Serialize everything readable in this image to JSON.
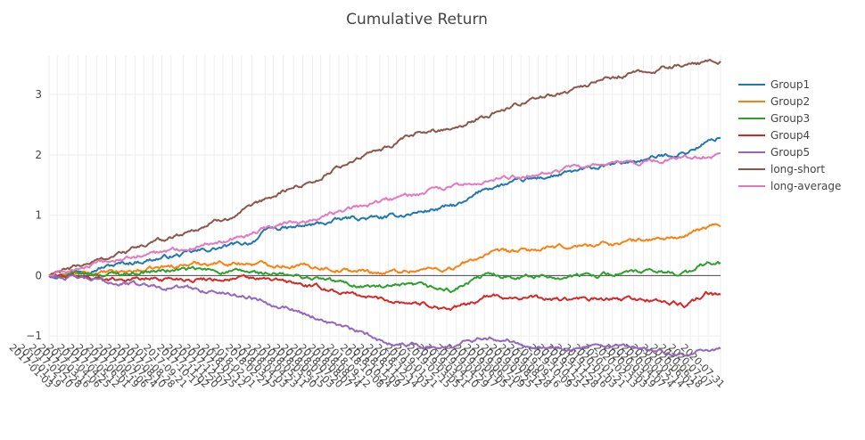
{
  "chart_data": {
    "type": "line",
    "title": "Cumulative Return",
    "xlabel": "",
    "ylabel": "",
    "ylim": [
      -1.75,
      3.65
    ],
    "yticks": [
      -1,
      0,
      1,
      2,
      3
    ],
    "ytick_labels": [
      "−1",
      "0",
      "1",
      "2",
      "3"
    ],
    "grid": true,
    "legend_position": "right",
    "x_start": "2017-01-03",
    "x_end": "2020-07-31",
    "xtick_labels": [
      "2017-01-03",
      "2017-01-19",
      "2017-02-10",
      "2017-02-28",
      "2017-03-16",
      "2017-04-06",
      "2017-04-25",
      "2017-05-12",
      "2017-06-01",
      "2017-06-19",
      "2017-07-06",
      "2017-07-24",
      "2017-08-10",
      "2017-08-28",
      "2017-09-21",
      "2017-10-17",
      "2017-11-02",
      "2017-11-20",
      "2017-12-07",
      "2017-12-25",
      "2018-01-12",
      "2018-02-01",
      "2018-02-27",
      "2018-03-15",
      "2018-04-03",
      "2018-04-23",
      "2018-05-11",
      "2018-05-30",
      "2018-06-15",
      "2018-07-03",
      "2018-07-20",
      "2018-08-07",
      "2018-08-24",
      "2018-09-12",
      "2018-10-08",
      "2018-10-24",
      "2018-11-09",
      "2018-11-27",
      "2018-12-14",
      "2019-01-03",
      "2019-01-21",
      "2019-02-15",
      "2019-03-05",
      "2019-03-21",
      "2019-04-10",
      "2019-04-29",
      "2019-05-17",
      "2019-06-05",
      "2019-06-21",
      "2019-07-09",
      "2019-07-25",
      "2019-08-12",
      "2019-08-28",
      "2019-09-16",
      "2019-10-09",
      "2019-10-25",
      "2019-11-12",
      "2019-11-28",
      "2019-12-16",
      "2020-01-03",
      "2020-01-21",
      "2020-02-13",
      "2020-03-03",
      "2020-03-19",
      "2020-04-07",
      "2020-04-24",
      "2020-05-14",
      "2020-06-02",
      "2020-06-18",
      "2020-07-07",
      "2020-07-31"
    ],
    "series": [
      {
        "name": "Group1",
        "color": "#1f77b4",
        "points": [
          [
            0,
            0.0
          ],
          [
            0.05,
            0.1
          ],
          [
            0.1,
            0.18
          ],
          [
            0.2,
            0.35
          ],
          [
            0.3,
            0.55
          ],
          [
            0.33,
            0.78
          ],
          [
            0.36,
            0.78
          ],
          [
            0.4,
            0.85
          ],
          [
            0.45,
            0.95
          ],
          [
            0.5,
            0.95
          ],
          [
            0.55,
            1.05
          ],
          [
            0.6,
            1.15
          ],
          [
            0.62,
            1.2
          ],
          [
            0.65,
            1.45
          ],
          [
            0.7,
            1.55
          ],
          [
            0.75,
            1.65
          ],
          [
            0.8,
            1.75
          ],
          [
            0.85,
            1.85
          ],
          [
            0.9,
            1.95
          ],
          [
            0.95,
            2.05
          ],
          [
            0.98,
            2.2
          ],
          [
            1.0,
            2.3
          ]
        ]
      },
      {
        "name": "Group2",
        "color": "#ff7f0e",
        "points": [
          [
            0,
            0.0
          ],
          [
            0.1,
            0.05
          ],
          [
            0.15,
            0.1
          ],
          [
            0.2,
            0.18
          ],
          [
            0.25,
            0.22
          ],
          [
            0.3,
            0.2
          ],
          [
            0.35,
            0.18
          ],
          [
            0.4,
            0.15
          ],
          [
            0.45,
            0.08
          ],
          [
            0.5,
            0.05
          ],
          [
            0.55,
            0.1
          ],
          [
            0.6,
            0.12
          ],
          [
            0.62,
            0.2
          ],
          [
            0.65,
            0.35
          ],
          [
            0.7,
            0.4
          ],
          [
            0.75,
            0.45
          ],
          [
            0.8,
            0.5
          ],
          [
            0.85,
            0.55
          ],
          [
            0.9,
            0.6
          ],
          [
            0.95,
            0.65
          ],
          [
            0.98,
            0.8
          ],
          [
            1.0,
            0.85
          ]
        ]
      },
      {
        "name": "Group3",
        "color": "#2ca02c",
        "points": [
          [
            0,
            0.0
          ],
          [
            0.1,
            0.03
          ],
          [
            0.2,
            0.1
          ],
          [
            0.3,
            0.05
          ],
          [
            0.35,
            0.0
          ],
          [
            0.4,
            -0.05
          ],
          [
            0.45,
            -0.15
          ],
          [
            0.5,
            -0.2
          ],
          [
            0.55,
            -0.18
          ],
          [
            0.6,
            -0.25
          ],
          [
            0.62,
            -0.15
          ],
          [
            0.65,
            0.0
          ],
          [
            0.7,
            0.0
          ],
          [
            0.75,
            -0.02
          ],
          [
            0.8,
            0.0
          ],
          [
            0.85,
            0.05
          ],
          [
            0.9,
            0.05
          ],
          [
            0.95,
            0.05
          ],
          [
            0.98,
            0.2
          ],
          [
            1.0,
            0.2
          ]
        ]
      },
      {
        "name": "Group4",
        "color": "#d62728",
        "points": [
          [
            0,
            0.0
          ],
          [
            0.1,
            -0.05
          ],
          [
            0.2,
            -0.05
          ],
          [
            0.3,
            -0.05
          ],
          [
            0.35,
            -0.1
          ],
          [
            0.4,
            -0.2
          ],
          [
            0.45,
            -0.3
          ],
          [
            0.5,
            -0.4
          ],
          [
            0.55,
            -0.45
          ],
          [
            0.6,
            -0.55
          ],
          [
            0.62,
            -0.5
          ],
          [
            0.65,
            -0.35
          ],
          [
            0.7,
            -0.35
          ],
          [
            0.75,
            -0.4
          ],
          [
            0.8,
            -0.4
          ],
          [
            0.85,
            -0.4
          ],
          [
            0.9,
            -0.4
          ],
          [
            0.95,
            -0.5
          ],
          [
            0.98,
            -0.3
          ],
          [
            1.0,
            -0.35
          ]
        ]
      },
      {
        "name": "Group5",
        "color": "#9467bd",
        "points": [
          [
            0,
            0.0
          ],
          [
            0.1,
            -0.12
          ],
          [
            0.2,
            -0.2
          ],
          [
            0.3,
            -0.35
          ],
          [
            0.35,
            -0.5
          ],
          [
            0.4,
            -0.7
          ],
          [
            0.45,
            -0.9
          ],
          [
            0.5,
            -1.1
          ],
          [
            0.55,
            -1.15
          ],
          [
            0.6,
            -1.2
          ],
          [
            0.62,
            -1.05
          ],
          [
            0.65,
            -1.0
          ],
          [
            0.7,
            -1.1
          ],
          [
            0.75,
            -1.2
          ],
          [
            0.8,
            -1.2
          ],
          [
            0.85,
            -1.2
          ],
          [
            0.9,
            -1.25
          ],
          [
            0.95,
            -1.35
          ],
          [
            0.98,
            -1.2
          ],
          [
            1.0,
            -1.2
          ]
        ]
      },
      {
        "name": "long-short",
        "color": "#8c564b",
        "points": [
          [
            0,
            0.0
          ],
          [
            0.1,
            0.35
          ],
          [
            0.2,
            0.7
          ],
          [
            0.3,
            1.1
          ],
          [
            0.35,
            1.4
          ],
          [
            0.4,
            1.6
          ],
          [
            0.45,
            1.9
          ],
          [
            0.5,
            2.1
          ],
          [
            0.55,
            2.35
          ],
          [
            0.6,
            2.45
          ],
          [
            0.65,
            2.65
          ],
          [
            0.7,
            2.85
          ],
          [
            0.75,
            3.0
          ],
          [
            0.8,
            3.15
          ],
          [
            0.85,
            3.3
          ],
          [
            0.9,
            3.4
          ],
          [
            0.95,
            3.5
          ],
          [
            1.0,
            3.55
          ]
        ]
      },
      {
        "name": "long-average",
        "color": "#e377c2",
        "points": [
          [
            0,
            0.0
          ],
          [
            0.1,
            0.25
          ],
          [
            0.2,
            0.45
          ],
          [
            0.3,
            0.7
          ],
          [
            0.35,
            0.85
          ],
          [
            0.4,
            0.95
          ],
          [
            0.45,
            1.1
          ],
          [
            0.5,
            1.25
          ],
          [
            0.55,
            1.35
          ],
          [
            0.6,
            1.45
          ],
          [
            0.65,
            1.55
          ],
          [
            0.7,
            1.65
          ],
          [
            0.75,
            1.75
          ],
          [
            0.8,
            1.8
          ],
          [
            0.85,
            1.85
          ],
          [
            0.9,
            1.9
          ],
          [
            0.95,
            1.95
          ],
          [
            1.0,
            2.0
          ]
        ]
      }
    ]
  },
  "colors": {
    "grid": "#eeeeee",
    "zero_line": "#444444",
    "text": "#444444"
  }
}
